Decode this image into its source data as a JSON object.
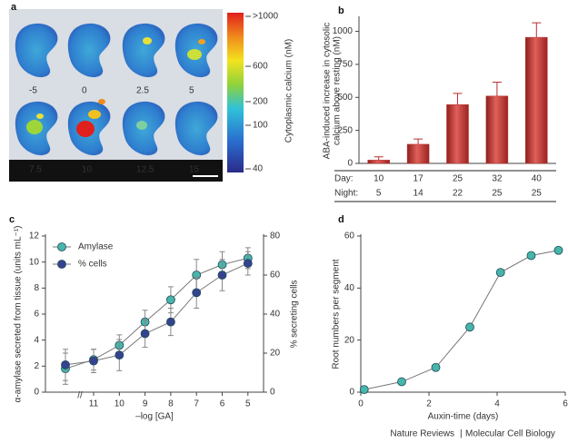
{
  "panel_labels": [
    "a",
    "b",
    "c",
    "d"
  ],
  "panel_a": {
    "time_labels": [
      "-5",
      "0",
      "2.5",
      "5",
      "7.5",
      "10",
      "12.5",
      "15"
    ],
    "colorbar_labels": [
      ">1000",
      "600",
      "200",
      "100",
      "40"
    ],
    "colorbar_title": "Cytoplasmic calcium (nM)"
  },
  "chart_data": [
    {
      "type": "bar",
      "ylabel": [
        "ABA-induced increase in cytosolic",
        "calcium above resting (nM)"
      ],
      "values": [
        25,
        145,
        445,
        510,
        955
      ],
      "errors": [
        25,
        40,
        85,
        105,
        110
      ],
      "color": "#b8312f",
      "ylim": [
        0,
        1100
      ],
      "yticks": [
        0,
        250,
        500,
        750,
        1000
      ],
      "table": {
        "rows": [
          {
            "label": "Day:",
            "values": [
              10,
              17,
              25,
              32,
              40
            ]
          },
          {
            "label": "Night:",
            "values": [
              5,
              14,
              22,
              25,
              25
            ]
          }
        ]
      }
    },
    {
      "type": "line",
      "xlabel": "–log [GA]",
      "ylabel": "α-amylase secreted from tissue (units mL⁻¹)",
      "y2label": "% secreting cells",
      "categories": [
        null,
        "11",
        "10",
        "9",
        "8",
        "7",
        "6",
        "5"
      ],
      "series": [
        {
          "name": "Amylase",
          "color": "#46b5aa",
          "values": [
            1.8,
            2.5,
            3.6,
            5.4,
            7.1,
            9.0,
            9.8,
            10.3
          ],
          "errors": [
            1.2,
            0.8,
            0.8,
            0.9,
            1.0,
            1.2,
            1.0,
            0.8
          ]
        },
        {
          "name": "% cells",
          "color": "#35438f",
          "axis": "y2",
          "values": [
            14,
            16,
            19,
            30,
            36,
            51,
            60,
            66
          ],
          "errors": [
            8,
            6,
            8,
            7,
            7,
            8,
            8,
            6
          ]
        }
      ],
      "ylim": [
        0,
        12
      ],
      "yticks": [
        0,
        2,
        4,
        6,
        8,
        10,
        12
      ],
      "y2lim": [
        0,
        80
      ],
      "y2ticks": [
        0,
        20,
        40,
        60,
        80
      ],
      "legend": "upper left"
    },
    {
      "type": "line",
      "xlabel": "Auxin-time (days)",
      "ylabel": "Root numbers per segment",
      "x": [
        0.1,
        1.2,
        2.2,
        3.2,
        4.1,
        5.0,
        5.8
      ],
      "series": [
        {
          "color": "#46b5aa",
          "values": [
            1,
            4,
            9.5,
            25,
            46,
            52.5,
            54.5
          ]
        }
      ],
      "xlim": [
        0,
        6
      ],
      "xticks": [
        0,
        2,
        4,
        6
      ],
      "ylim": [
        0,
        60
      ],
      "yticks": [
        0,
        20,
        40,
        60
      ]
    }
  ],
  "footer": [
    "Nature Reviews",
    "|",
    "Molecular Cell Biology"
  ]
}
